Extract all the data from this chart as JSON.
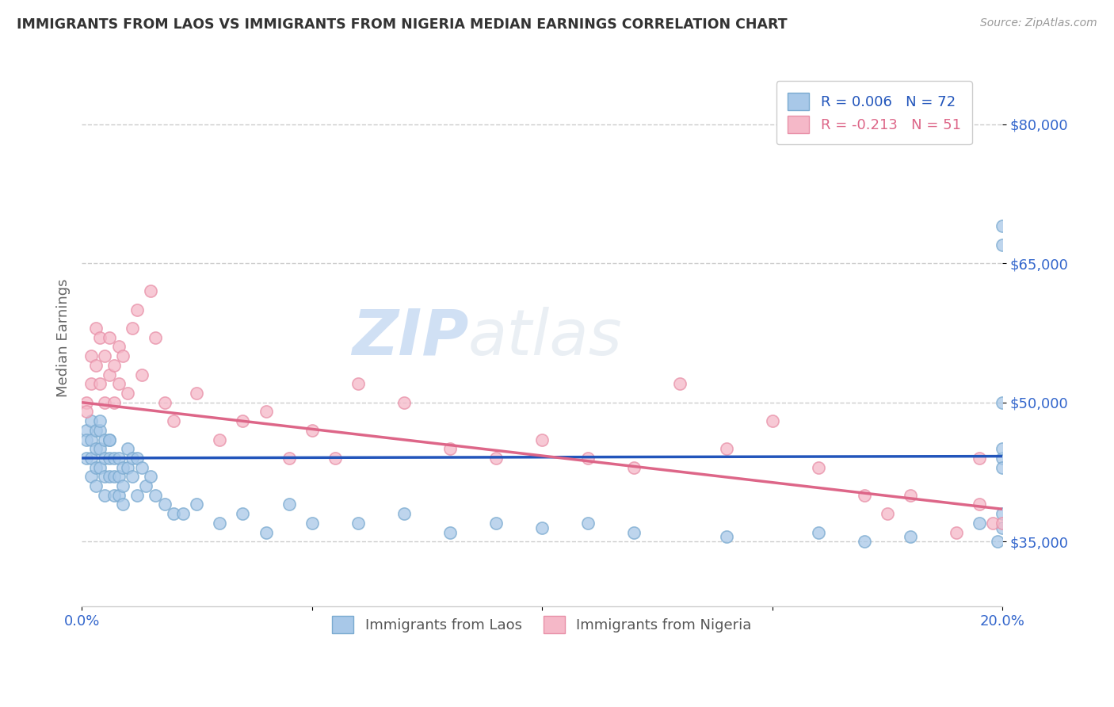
{
  "title": "IMMIGRANTS FROM LAOS VS IMMIGRANTS FROM NIGERIA MEDIAN EARNINGS CORRELATION CHART",
  "source": "Source: ZipAtlas.com",
  "ylabel": "Median Earnings",
  "legend_label_blue": "Immigrants from Laos",
  "legend_label_pink": "Immigrants from Nigeria",
  "legend_r_blue": "R = 0.006",
  "legend_n_blue": "N = 72",
  "legend_r_pink": "R = -0.213",
  "legend_n_pink": "N = 51",
  "yticks": [
    35000,
    50000,
    65000,
    80000
  ],
  "ytick_labels": [
    "$35,000",
    "$50,000",
    "$65,000",
    "$80,000"
  ],
  "xlim": [
    0.0,
    0.2
  ],
  "ylim": [
    28000,
    86000
  ],
  "blue_color": "#A8C8E8",
  "blue_edge": "#7AAAD0",
  "pink_color": "#F5B8C8",
  "pink_edge": "#E890A8",
  "trend_blue": "#2255BB",
  "trend_pink": "#DD6688",
  "background_color": "#FFFFFF",
  "grid_color": "#CCCCCC",
  "title_color": "#333333",
  "source_color": "#999999",
  "ytick_color": "#3366CC",
  "xtick_color": "#3366CC",
  "blue_scatter_x": [
    0.001,
    0.001,
    0.001,
    0.002,
    0.002,
    0.002,
    0.002,
    0.003,
    0.003,
    0.003,
    0.003,
    0.004,
    0.004,
    0.004,
    0.004,
    0.005,
    0.005,
    0.005,
    0.005,
    0.006,
    0.006,
    0.006,
    0.006,
    0.007,
    0.007,
    0.007,
    0.008,
    0.008,
    0.008,
    0.009,
    0.009,
    0.009,
    0.01,
    0.01,
    0.011,
    0.011,
    0.012,
    0.012,
    0.013,
    0.014,
    0.015,
    0.016,
    0.018,
    0.02,
    0.022,
    0.025,
    0.03,
    0.035,
    0.04,
    0.045,
    0.05,
    0.06,
    0.07,
    0.08,
    0.09,
    0.1,
    0.11,
    0.12,
    0.14,
    0.16,
    0.17,
    0.18,
    0.195,
    0.199,
    0.2,
    0.2,
    0.2,
    0.2,
    0.2,
    0.2,
    0.2,
    0.2
  ],
  "blue_scatter_y": [
    47000,
    46000,
    44000,
    48000,
    46000,
    44000,
    42000,
    47000,
    45000,
    43000,
    41000,
    47000,
    45000,
    43000,
    48000,
    46000,
    44000,
    42000,
    40000,
    46000,
    44000,
    42000,
    46000,
    44000,
    42000,
    40000,
    44000,
    42000,
    40000,
    43000,
    41000,
    39000,
    45000,
    43000,
    44000,
    42000,
    44000,
    40000,
    43000,
    41000,
    42000,
    40000,
    39000,
    38000,
    38000,
    39000,
    37000,
    38000,
    36000,
    39000,
    37000,
    37000,
    38000,
    36000,
    37000,
    36500,
    37000,
    36000,
    35500,
    36000,
    35000,
    35500,
    37000,
    35000,
    36500,
    44000,
    45000,
    43000,
    38000,
    50000,
    69000,
    67000
  ],
  "pink_scatter_x": [
    0.001,
    0.001,
    0.002,
    0.002,
    0.003,
    0.003,
    0.004,
    0.004,
    0.005,
    0.005,
    0.006,
    0.006,
    0.007,
    0.007,
    0.008,
    0.008,
    0.009,
    0.01,
    0.011,
    0.012,
    0.013,
    0.015,
    0.016,
    0.018,
    0.02,
    0.025,
    0.03,
    0.035,
    0.04,
    0.045,
    0.05,
    0.055,
    0.06,
    0.07,
    0.08,
    0.09,
    0.1,
    0.11,
    0.12,
    0.13,
    0.14,
    0.15,
    0.16,
    0.17,
    0.175,
    0.18,
    0.19,
    0.195,
    0.195,
    0.198,
    0.2
  ],
  "pink_scatter_y": [
    50000,
    49000,
    55000,
    52000,
    58000,
    54000,
    57000,
    52000,
    55000,
    50000,
    57000,
    53000,
    54000,
    50000,
    56000,
    52000,
    55000,
    51000,
    58000,
    60000,
    53000,
    62000,
    57000,
    50000,
    48000,
    51000,
    46000,
    48000,
    49000,
    44000,
    47000,
    44000,
    52000,
    50000,
    45000,
    44000,
    46000,
    44000,
    43000,
    52000,
    45000,
    48000,
    43000,
    40000,
    38000,
    40000,
    36000,
    44000,
    39000,
    37000,
    37000
  ],
  "blue_trend_x": [
    0.0,
    0.2
  ],
  "blue_trend_y": [
    44000,
    44200
  ],
  "pink_trend_x": [
    0.0,
    0.2
  ],
  "pink_trend_y": [
    50000,
    38500
  ]
}
